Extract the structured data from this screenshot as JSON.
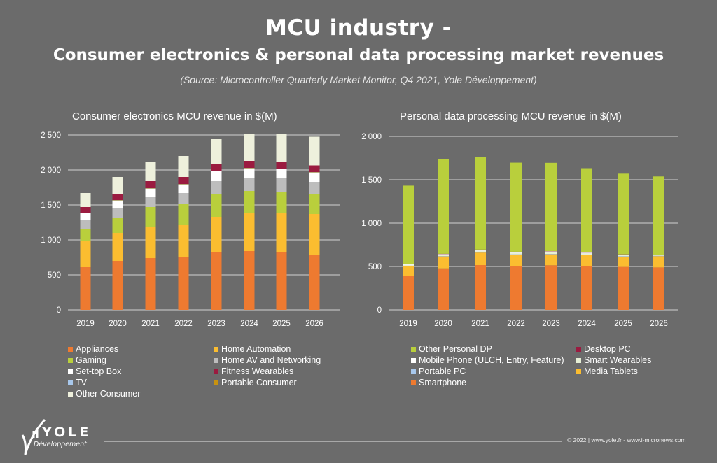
{
  "header": {
    "title_line1": "MCU industry -",
    "title_line2": "Consumer electronics & personal data processing market revenues",
    "source": "(Source: Microcontroller Quarterly Market Monitor, Q4 2021, Yole Développement)"
  },
  "chart_data": [
    {
      "type": "bar",
      "stacked": true,
      "title": "Consumer electronics MCU revenue in $(M)",
      "categories": [
        "2019",
        "2020",
        "2021",
        "2022",
        "2023",
        "2024",
        "2025",
        "2026"
      ],
      "ylim": [
        0,
        2500
      ],
      "yticks": [
        0,
        500,
        1000,
        1500,
        2000,
        2500
      ],
      "ytick_labels": [
        "0",
        "500",
        "1 000",
        "1 500",
        "2 000",
        "2 500"
      ],
      "grid": true,
      "legend_placement": "bottom",
      "series": [
        {
          "name": "Appliances",
          "color": "#ee7a30",
          "values": [
            610,
            700,
            740,
            760,
            830,
            840,
            830,
            790
          ]
        },
        {
          "name": "Home Automation",
          "color": "#fbbd30",
          "values": [
            370,
            400,
            440,
            460,
            500,
            540,
            560,
            580
          ]
        },
        {
          "name": "Gaming",
          "color": "#b9cf3c",
          "values": [
            180,
            210,
            290,
            300,
            330,
            320,
            300,
            290
          ]
        },
        {
          "name": "Home AV and Networking",
          "color": "#bdbdbd",
          "values": [
            120,
            140,
            150,
            150,
            180,
            180,
            190,
            170
          ]
        },
        {
          "name": "Set-top Box",
          "color": "#ffffff",
          "values": [
            100,
            110,
            110,
            120,
            140,
            140,
            130,
            130
          ]
        },
        {
          "name": "TV",
          "color": "#a8c8ec",
          "values": [
            5,
            5,
            5,
            5,
            5,
            5,
            5,
            5
          ]
        },
        {
          "name": "Portable Consumer",
          "color": "#c8920f",
          "values": [
            5,
            5,
            5,
            5,
            5,
            5,
            5,
            5
          ]
        },
        {
          "name": "Fitness Wearables",
          "color": "#9b1b40",
          "values": [
            80,
            90,
            100,
            100,
            100,
            100,
            100,
            95
          ]
        },
        {
          "name": "Other Consumer",
          "color": "#eef0dc",
          "values": [
            200,
            240,
            270,
            300,
            350,
            390,
            400,
            410
          ]
        }
      ],
      "legend_order": [
        "Appliances",
        "Home Automation",
        "Gaming",
        "Home AV and Networking",
        "Set-top Box",
        "Fitness Wearables",
        "TV",
        "Portable Consumer",
        "Other Consumer"
      ]
    },
    {
      "type": "bar",
      "stacked": true,
      "title": "Personal data processing MCU revenue in $(M)",
      "categories": [
        "2019",
        "2020",
        "2021",
        "2022",
        "2023",
        "2024",
        "2025",
        "2026"
      ],
      "ylim": [
        0,
        2000
      ],
      "yticks": [
        0,
        500,
        1000,
        1500,
        2000
      ],
      "ytick_labels": [
        "0",
        "500",
        "1 000",
        "1 500",
        "2 000"
      ],
      "grid": true,
      "legend_placement": "bottom",
      "series": [
        {
          "name": "Smartphone",
          "color": "#ee7a30",
          "values": [
            392,
            478,
            516,
            505,
            514,
            505,
            495,
            489
          ]
        },
        {
          "name": "Media Tablets",
          "color": "#fbbd30",
          "values": [
            113,
            138,
            144,
            130,
            126,
            127,
            119,
            130
          ]
        },
        {
          "name": "Portable PC",
          "color": "#a8c8ec",
          "values": [
            3,
            3,
            4,
            4,
            4,
            4,
            4,
            4
          ]
        },
        {
          "name": "Smart Wearables",
          "color": "#e6efd6",
          "values": [
            12,
            14,
            16,
            16,
            18,
            14,
            12,
            6
          ]
        },
        {
          "name": "Mobile Phone (ULCH, Entry, Feature)",
          "color": "#ffffff",
          "values": [
            10,
            10,
            12,
            12,
            12,
            10,
            8,
            4
          ]
        },
        {
          "name": "Desktop PC",
          "color": "#9b1b40",
          "values": [
            2,
            3,
            3,
            3,
            3,
            2,
            2,
            2
          ]
        },
        {
          "name": "Other Personal DP",
          "color": "#b9cf3c",
          "values": [
            900,
            1089,
            1070,
            1027,
            1018,
            971,
            930,
            903
          ]
        }
      ],
      "legend_order": [
        "Other Personal DP",
        "Desktop PC",
        "Mobile Phone (ULCH, Entry, Feature)",
        "Smart Wearables",
        "Portable PC",
        "Media Tablets",
        "Smartphone"
      ]
    }
  ],
  "footer": {
    "logo_text": "YOLE Développement",
    "copyright": "© 2022 | www.yole.fr - www.i-micronews.com"
  }
}
